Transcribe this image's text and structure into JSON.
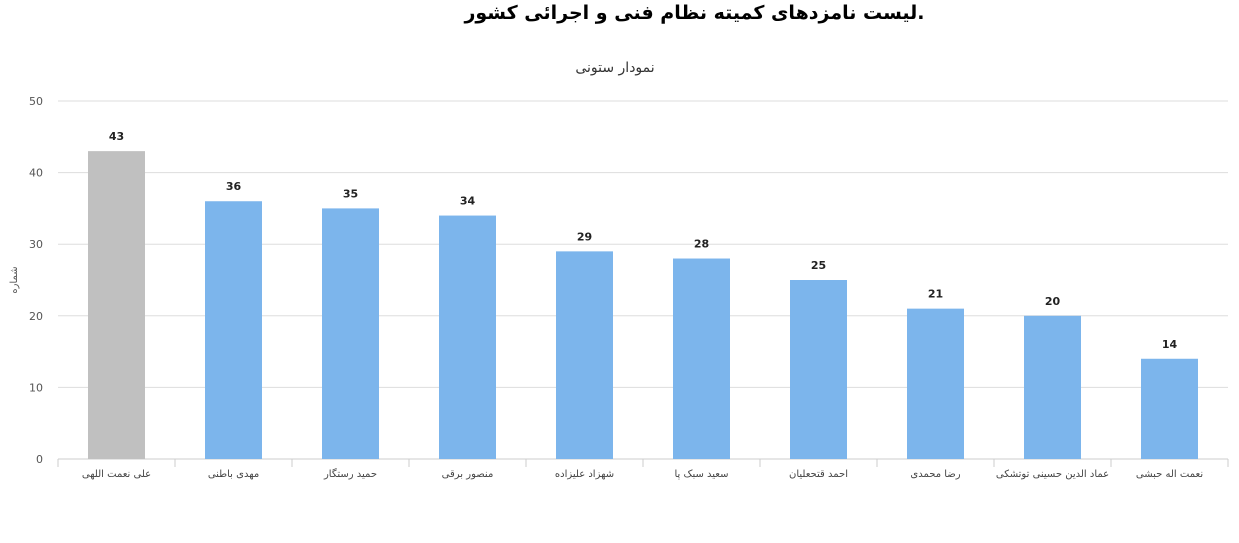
{
  "page": {
    "title": ".لیست نامزدهای کمیته نظام فنی و اجرائی کشور"
  },
  "colors": {
    "highlight_bar": "#c0c0c0",
    "bar": "#7cb5ec",
    "grid": "#dddddd",
    "axis": "#cccccc"
  },
  "chart_data": {
    "type": "bar",
    "title": "نمودار ستونی",
    "xlabel": "",
    "ylabel": "شماره",
    "ylim": [
      0,
      50
    ],
    "yticks": [
      0,
      10,
      20,
      30,
      40,
      50
    ],
    "grid": true,
    "categories": [
      "علی نعمت اللهی",
      "مهدی باطنی",
      "حمید رستگار",
      "منصور برقی",
      "شهزاد علیزاده",
      "سعید سبک پا",
      "احمد قتحعلیان",
      "رضا محمدی",
      "عماد الدین حسینی توتشکی",
      "نعمت اله حبشی"
    ],
    "values": [
      43,
      36,
      35,
      34,
      29,
      28,
      25,
      21,
      20,
      14
    ],
    "highlighted_index": 0
  }
}
